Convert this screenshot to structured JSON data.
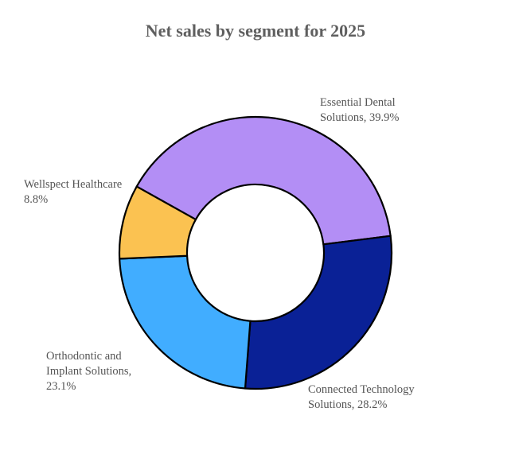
{
  "chart_data": {
    "type": "pie",
    "subtype": "donut",
    "title": "Net sales by segment for 2025",
    "slices": [
      {
        "name": "Essential Dental Solutions",
        "value": 39.9,
        "label_lines": [
          "Essential Dental",
          "Solutions, 39.9%"
        ],
        "color": "#b38ef5"
      },
      {
        "name": "Connected Technology Solutions",
        "value": 28.2,
        "label_lines": [
          "Connected Technology",
          "Solutions, 28.2%"
        ],
        "color": "#0a2196"
      },
      {
        "name": "Orthodontic and Implant Solutions",
        "value": 23.1,
        "label_lines": [
          "Orthodontic and",
          "Implant Solutions,",
          "23.1%"
        ],
        "color": "#41adff"
      },
      {
        "name": "Wellspect Healthcare",
        "value": 8.8,
        "label_lines": [
          "Wellspect Healthcare",
          "8.8%"
        ],
        "color": "#fbc251"
      }
    ],
    "start_angle_deg": -60.8,
    "direction": "clockwise",
    "unit": "%"
  }
}
